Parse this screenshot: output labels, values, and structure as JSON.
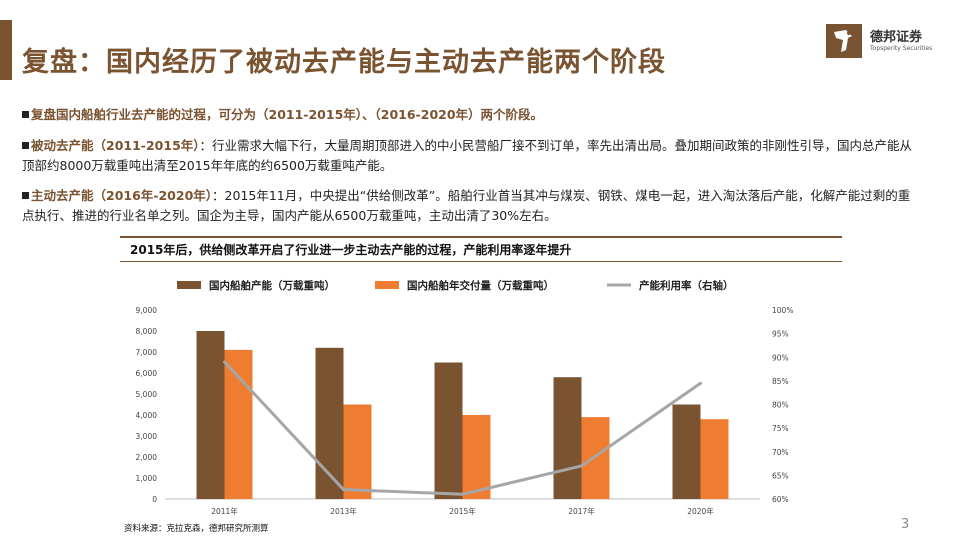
{
  "title": "复盘：国内经历了被动去产能与主动去产能两个阶段",
  "logo": {
    "cn": "德邦证券",
    "en": "Topsperity Securities"
  },
  "paragraphs": [
    {
      "lead": "复盘国内船舶行业去产能的过程，可分为（2011-2015年）、（2016-2020年）两个阶段。",
      "body": ""
    },
    {
      "lead": "被动去产能（2011-2015年）",
      "body": "：行业需求大幅下行，大量周期顶部进入的中小民营船厂接不到订单，率先出清出局。叠加期间政策的非刚性引导，国内总产能从顶部约8000万载重吨出清至2015年年底的约6500万载重吨产能。"
    },
    {
      "lead": "主动去产能（2016年-2020年）",
      "body": "：2015年11月，中央提出“供给侧改革”。船舶行业首当其冲与煤炭、钢铁、煤电一起，进入淘汰落后产能，化解产能过剩的重点执行、推进的行业名单之列。国企为主导，国内产能从6500万载重吨，主动出清了30%左右。"
    }
  ],
  "chart_title": "2015年后，供给侧改革开启了行业进一步主动去产能的过程，产能利用率逐年提升",
  "source": "资料来源：克拉克森，德邦研究所测算",
  "page_number": "3",
  "chart_data": {
    "type": "bar",
    "categories": [
      "2011年",
      "2013年",
      "2015年",
      "2017年",
      "2020年"
    ],
    "series": [
      {
        "name": "国内船舶产能（万载重吨）",
        "type": "bar",
        "axis": "left",
        "color": "#7a5330",
        "values": [
          8000,
          7200,
          6500,
          5800,
          4500
        ]
      },
      {
        "name": "国内船舶年交付量（万载重吨）",
        "type": "bar",
        "axis": "left",
        "color": "#ef7d31",
        "values": [
          7100,
          4500,
          4000,
          3900,
          3800
        ]
      },
      {
        "name": "产能利用率（右轴）",
        "type": "line",
        "axis": "right",
        "color": "#a6a6a6",
        "values": [
          89,
          62,
          61,
          67,
          84.5
        ]
      }
    ],
    "left_axis": {
      "min": 0,
      "max": 9000,
      "ticks": [
        "0",
        "1,000",
        "2,000",
        "3,000",
        "4,000",
        "5,000",
        "6,000",
        "7,000",
        "8,000",
        "9,000"
      ]
    },
    "right_axis": {
      "min": 60,
      "max": 100,
      "ticks": [
        "60%",
        "65%",
        "70%",
        "75%",
        "80%",
        "85%",
        "90%",
        "95%",
        "100%"
      ]
    },
    "legend_position": "top",
    "grid": false
  }
}
